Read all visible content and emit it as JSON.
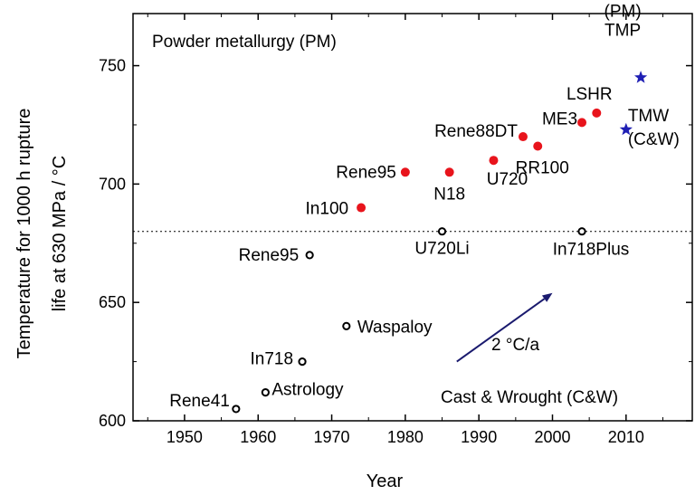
{
  "chart_data": {
    "type": "scatter",
    "xlabel": "Year",
    "ylabel_line1": "Temperature for 1000 h rupture",
    "ylabel_line2": "life at 630 MPa / °C",
    "xlim": [
      1943,
      2019
    ],
    "ylim": [
      600,
      772
    ],
    "xticks": [
      1950,
      1960,
      1970,
      1980,
      1990,
      2000,
      2010
    ],
    "yticks": [
      600,
      650,
      700,
      750
    ],
    "threshold_line": {
      "y": 680,
      "style": "dotted"
    },
    "region_labels": {
      "pm": "Powder metallurgy (PM)",
      "cw": "Cast & Wrought (C&W)"
    },
    "trend": {
      "from": [
        1987,
        625
      ],
      "to": [
        2000,
        654
      ],
      "label": "2 °C/a"
    },
    "colors": {
      "pm": "#e8141c",
      "star": "#1f1fb4",
      "arrow": "#1a1a6e",
      "cw": "#000000"
    },
    "series": [
      {
        "marker": "open-circle",
        "points": [
          {
            "x": 1957,
            "y": 605,
            "label": "Rene41"
          },
          {
            "x": 1961,
            "y": 612,
            "label": "Astrology"
          },
          {
            "x": 1966,
            "y": 625,
            "label": "In718"
          },
          {
            "x": 1972,
            "y": 640,
            "label": "Waspaloy"
          },
          {
            "x": 1967,
            "y": 670,
            "label": "Rene95"
          },
          {
            "x": 1985,
            "y": 680,
            "label": "U720Li"
          },
          {
            "x": 2004,
            "y": 680,
            "label": "In718Plus"
          }
        ]
      },
      {
        "marker": "filled-circle",
        "points": [
          {
            "x": 1974,
            "y": 690,
            "label": "In100"
          },
          {
            "x": 1980,
            "y": 705,
            "label": "Rene95"
          },
          {
            "x": 1986,
            "y": 705,
            "label": "N18"
          },
          {
            "x": 1992,
            "y": 710,
            "label": "U720"
          },
          {
            "x": 1996,
            "y": 720,
            "label": "Rene88DT"
          },
          {
            "x": 1998,
            "y": 716,
            "label": "RR100"
          },
          {
            "x": 2004,
            "y": 726,
            "label": "ME3"
          },
          {
            "x": 2006,
            "y": 730,
            "label": "LSHR"
          }
        ]
      },
      {
        "marker": "star",
        "points": [
          {
            "x": 2012,
            "y": 745,
            "label": "TMP",
            "label2": "(PM)"
          },
          {
            "x": 2010,
            "y": 723,
            "label": "TMW",
            "label2": "(C&W)"
          }
        ]
      }
    ]
  }
}
